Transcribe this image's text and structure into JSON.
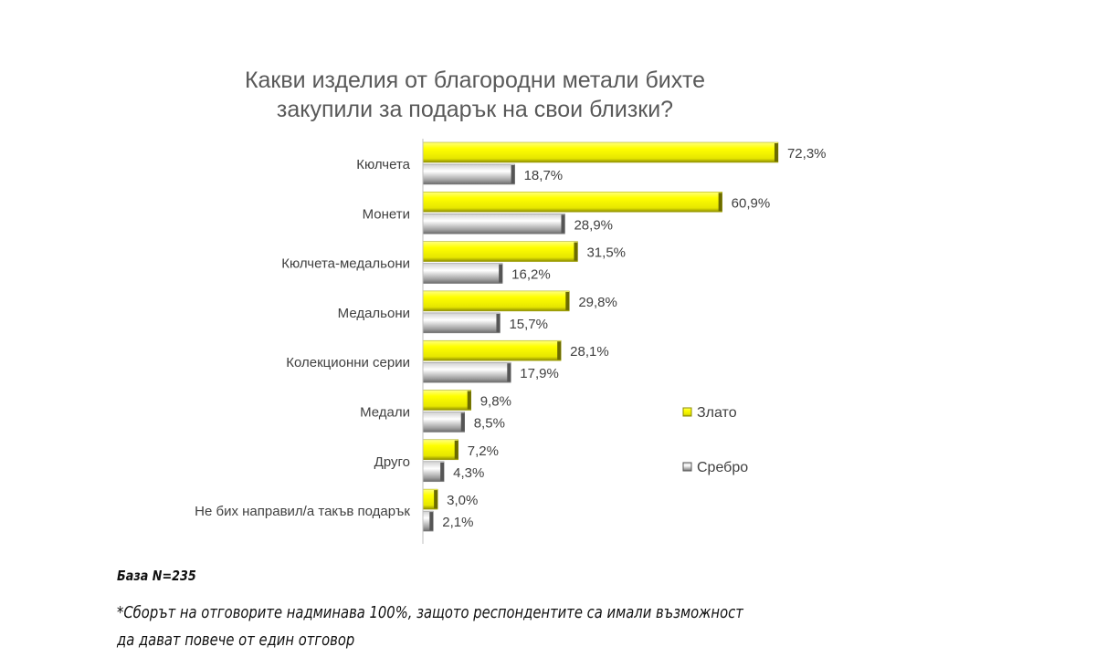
{
  "chart_data": {
    "type": "bar",
    "orientation": "horizontal",
    "title": "Какви изделия от благородни метали бихте закупили за подарък на свои близки?",
    "title_lines": [
      "Какви изделия от благородни метали бихте",
      "закупили за подарък на свои близки?"
    ],
    "categories": [
      "Кюлчета",
      "Монети",
      "Кюлчета-медальони",
      "Медальони",
      "Колекционни серии",
      "Медали",
      "Друго",
      "Не бих направил/а такъв подарък"
    ],
    "series": [
      {
        "name": "Злато",
        "color": "#ffff00",
        "values": [
          72.3,
          60.9,
          31.5,
          29.8,
          28.1,
          9.8,
          7.2,
          3.0
        ],
        "labels": [
          "72,3%",
          "60,9%",
          "31,5%",
          "29,8%",
          "28,1%",
          "9,8%",
          "7,2%",
          "3,0%"
        ]
      },
      {
        "name": "Сребро",
        "color": "#a6a6a6",
        "values": [
          18.7,
          28.9,
          16.2,
          15.7,
          17.9,
          8.5,
          4.3,
          2.1
        ],
        "labels": [
          "18,7%",
          "28,9%",
          "16,2%",
          "15,7%",
          "17,9%",
          "8,5%",
          "4,3%",
          "2,1%"
        ]
      }
    ],
    "xlim": [
      0,
      100
    ],
    "legend_position": "right",
    "grid": false
  },
  "footer": {
    "base": "База N=235",
    "note_line1": "*Сборът на отговорите надминава 100%, защото респондентите са имали възможност",
    "note_line2": "да дават повече от един отговор"
  }
}
